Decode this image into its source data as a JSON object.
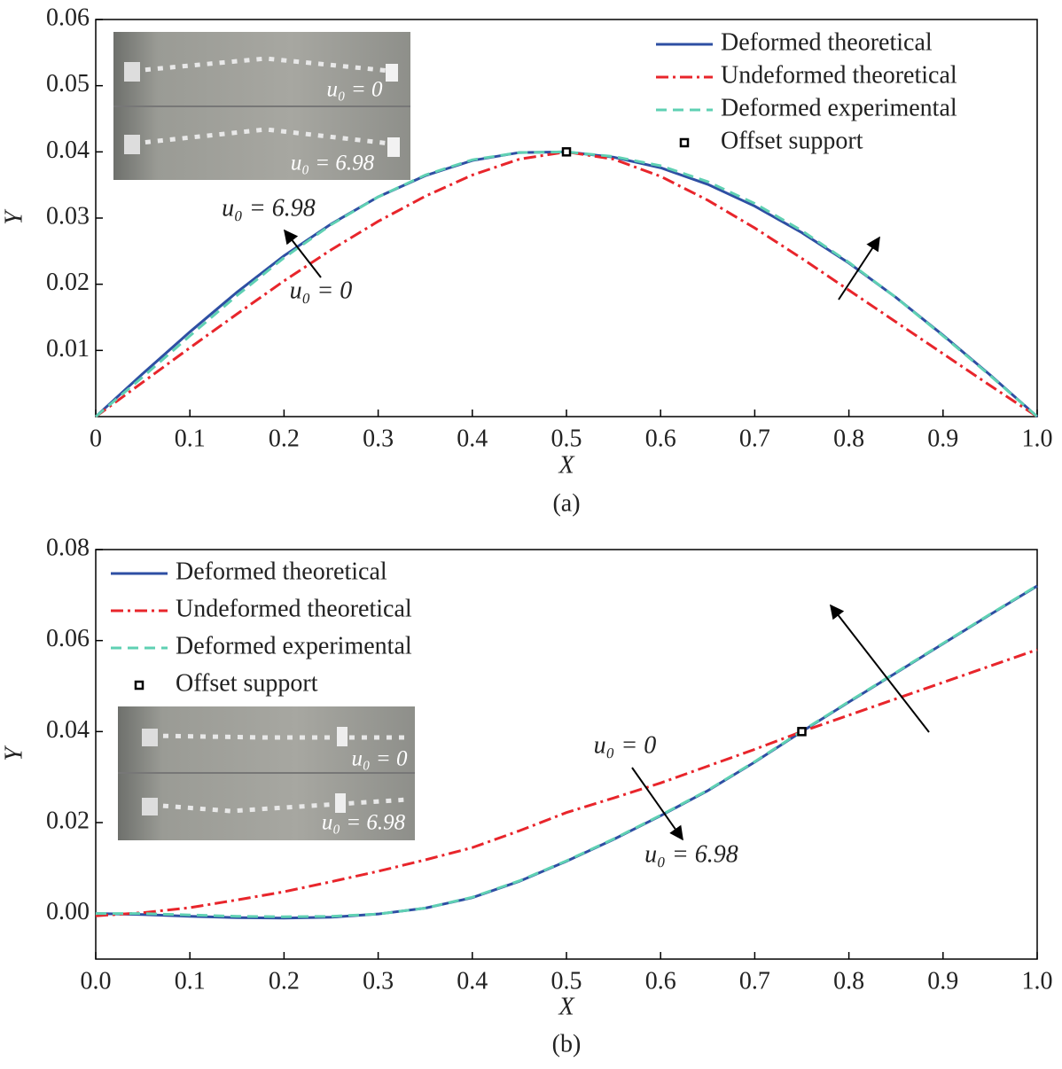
{
  "chart_data": [
    {
      "type": "line",
      "panel_label": "(a)",
      "xlabel": "X",
      "ylabel": "Y",
      "xlim": [
        0,
        1
      ],
      "ylim": [
        0,
        0.06
      ],
      "xticks": [
        0,
        0.1,
        0.2,
        0.3,
        0.4,
        0.5,
        0.6,
        0.7,
        0.8,
        0.9,
        {
          "value": 1,
          "label": "1.0"
        }
      ],
      "yticks": [
        0.01,
        0.02,
        0.03,
        0.04,
        0.05,
        0.06
      ],
      "legend": "upper right",
      "x": [
        0,
        0.05,
        0.1,
        0.15,
        0.2,
        0.25,
        0.3,
        0.35,
        0.4,
        0.45,
        0.5,
        0.55,
        0.6,
        0.65,
        0.7,
        0.75,
        0.8,
        0.85,
        0.9,
        0.95,
        1
      ],
      "series": [
        {
          "name": "Deformed theoretical",
          "color": "#2e4fa3",
          "style": "solid",
          "values": [
            0,
            0.0065,
            0.0128,
            0.0188,
            0.0243,
            0.0291,
            0.0332,
            0.0364,
            0.0387,
            0.0399,
            0.04,
            0.0392,
            0.0376,
            0.0351,
            0.0318,
            0.0278,
            0.0232,
            0.018,
            0.0123,
            0.0063,
            0
          ]
        },
        {
          "name": "Undeformed theoretical",
          "color": "#e8252b",
          "style": "dashdot",
          "values": [
            0,
            0.0052,
            0.0104,
            0.0155,
            0.0205,
            0.0252,
            0.0295,
            0.0333,
            0.0365,
            0.0389,
            0.04,
            0.0389,
            0.0363,
            0.0327,
            0.0285,
            0.0239,
            0.0191,
            0.0143,
            0.0095,
            0.0047,
            0
          ]
        },
        {
          "name": "Deformed experimental",
          "color": "#5fd0b3",
          "style": "dashed",
          "values": [
            0,
            0.006,
            0.0122,
            0.0183,
            0.024,
            0.029,
            0.0332,
            0.0365,
            0.0388,
            0.0399,
            0.04,
            0.0393,
            0.0379,
            0.0355,
            0.0322,
            0.0281,
            0.0233,
            0.018,
            0.0122,
            0.0062,
            0
          ]
        }
      ],
      "support": {
        "name": "Offset support",
        "x": 0.5,
        "y": 0.04
      },
      "annotations": [
        "u₀ = 6.98",
        "u₀ = 0"
      ],
      "inset_labels": [
        "u₀ = 0",
        "u₀ = 6.98"
      ]
    },
    {
      "type": "line",
      "panel_label": "(b)",
      "xlabel": "X",
      "ylabel": "Y",
      "xlim": [
        0,
        1
      ],
      "ylim": [
        -0.01,
        0.08
      ],
      "xticks": [
        {
          "value": 0,
          "label": "0.0"
        },
        0.1,
        0.2,
        0.3,
        0.4,
        0.5,
        0.6,
        0.7,
        0.8,
        0.9,
        {
          "value": 1,
          "label": "1.0"
        }
      ],
      "yticks": [
        {
          "value": 0,
          "label": "0.00"
        },
        0.02,
        0.04,
        0.06,
        0.08
      ],
      "legend": "upper left",
      "x": [
        0,
        0.05,
        0.1,
        0.15,
        0.2,
        0.25,
        0.3,
        0.35,
        0.4,
        0.45,
        0.5,
        0.55,
        0.6,
        0.65,
        0.7,
        0.75,
        0.8,
        0.85,
        0.9,
        0.95,
        1
      ],
      "series": [
        {
          "name": "Deformed theoretical",
          "color": "#2e4fa3",
          "style": "solid",
          "values": [
            0,
            -0.0002,
            -0.0006,
            -0.0009,
            -0.001,
            -0.0008,
            -0.0001,
            0.0012,
            0.0035,
            0.0071,
            0.0115,
            0.0163,
            0.0215,
            0.027,
            0.0333,
            0.04,
            0.0465,
            0.0529,
            0.0593,
            0.0657,
            0.072
          ]
        },
        {
          "name": "Undeformed theoretical",
          "color": "#e8252b",
          "style": "dashdot",
          "values": [
            -0.0005,
            0.0002,
            0.0013,
            0.003,
            0.0048,
            0.007,
            0.0093,
            0.0118,
            0.0145,
            0.0182,
            0.0222,
            0.0254,
            0.0287,
            0.0324,
            0.0361,
            0.04,
            0.0436,
            0.0472,
            0.0508,
            0.0544,
            0.058
          ]
        },
        {
          "name": "Deformed experimental",
          "color": "#5fd0b3",
          "style": "dashed",
          "values": [
            0,
            0,
            -0.0003,
            -0.0006,
            -0.0007,
            -0.0006,
            -0.0001,
            0.0012,
            0.0036,
            0.0072,
            0.0116,
            0.0164,
            0.0216,
            0.0271,
            0.0334,
            0.0401,
            0.0466,
            0.053,
            0.0594,
            0.0658,
            0.0721
          ]
        }
      ],
      "support": {
        "name": "Offset support",
        "x": 0.75,
        "y": 0.04
      },
      "annotations": [
        "u₀ = 0",
        "u₀ = 6.98"
      ],
      "inset_labels": [
        "u₀ = 0",
        "u₀ = 6.98"
      ]
    }
  ]
}
